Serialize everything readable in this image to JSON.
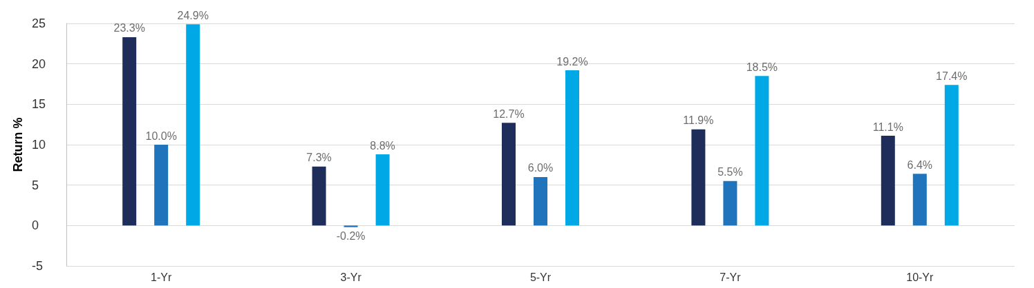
{
  "chart_data": {
    "type": "bar",
    "ylabel": "Return %",
    "categories": [
      "1-Yr",
      "3-Yr",
      "5-Yr",
      "7-Yr",
      "10-Yr"
    ],
    "series": [
      {
        "color": "#1f2d5a",
        "values": [
          23.3,
          7.3,
          12.7,
          11.9,
          11.1
        ],
        "value_labels": [
          "23.3%",
          "7.3%",
          "12.7%",
          "11.9%",
          "11.1%"
        ]
      },
      {
        "color": "#1f74bb",
        "values": [
          10.0,
          -0.2,
          6.0,
          5.5,
          6.4
        ],
        "value_labels": [
          "10.0%",
          "-0.2%",
          "6.0%",
          "5.5%",
          "6.4%"
        ]
      },
      {
        "color": "#00a9e6",
        "values": [
          24.9,
          8.8,
          19.2,
          18.5,
          17.4
        ],
        "value_labels": [
          "24.9%",
          "8.8%",
          "19.2%",
          "18.5%",
          "17.4%"
        ]
      }
    ],
    "ylim": [
      -5,
      25
    ],
    "yticks": [
      -5,
      0,
      5,
      10,
      15,
      20,
      25
    ],
    "grid": "y"
  }
}
